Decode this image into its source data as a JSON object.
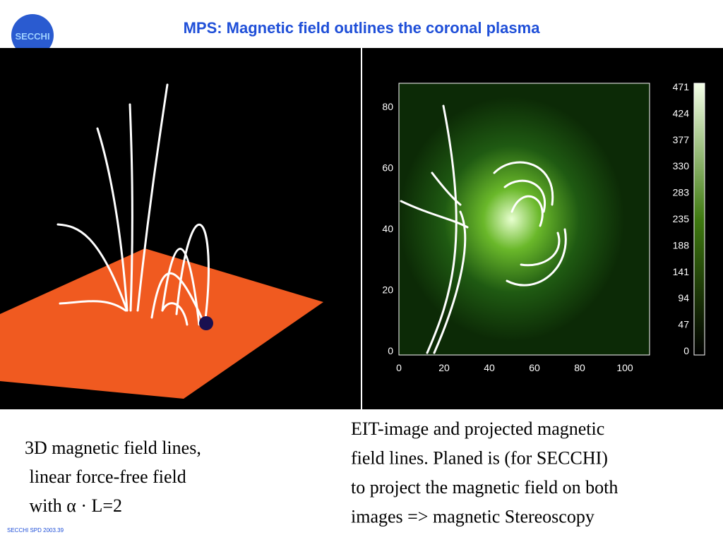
{
  "header": {
    "title": "MPS: Magnetic field outlines the coronal plasma",
    "logo": "SECCHI"
  },
  "right_figure": {
    "x_ticks": [
      0,
      20,
      40,
      60,
      80,
      100
    ],
    "y_ticks": [
      0,
      20,
      40,
      60,
      80
    ],
    "colorbar_ticks": [
      0,
      47,
      94,
      141,
      188,
      235,
      283,
      330,
      377,
      424,
      471
    ]
  },
  "captions": {
    "left": [
      "3D magnetic field lines,",
      " linear force-free field",
      " with α · L=2"
    ],
    "right": [
      "EIT-image and projected magnetic",
      "field lines. Planed is (for SECCHI)",
      "to project the magnetic field on both",
      "images => magnetic Stereoscopy"
    ]
  },
  "footer": "SECCHI SPD 2003.39"
}
